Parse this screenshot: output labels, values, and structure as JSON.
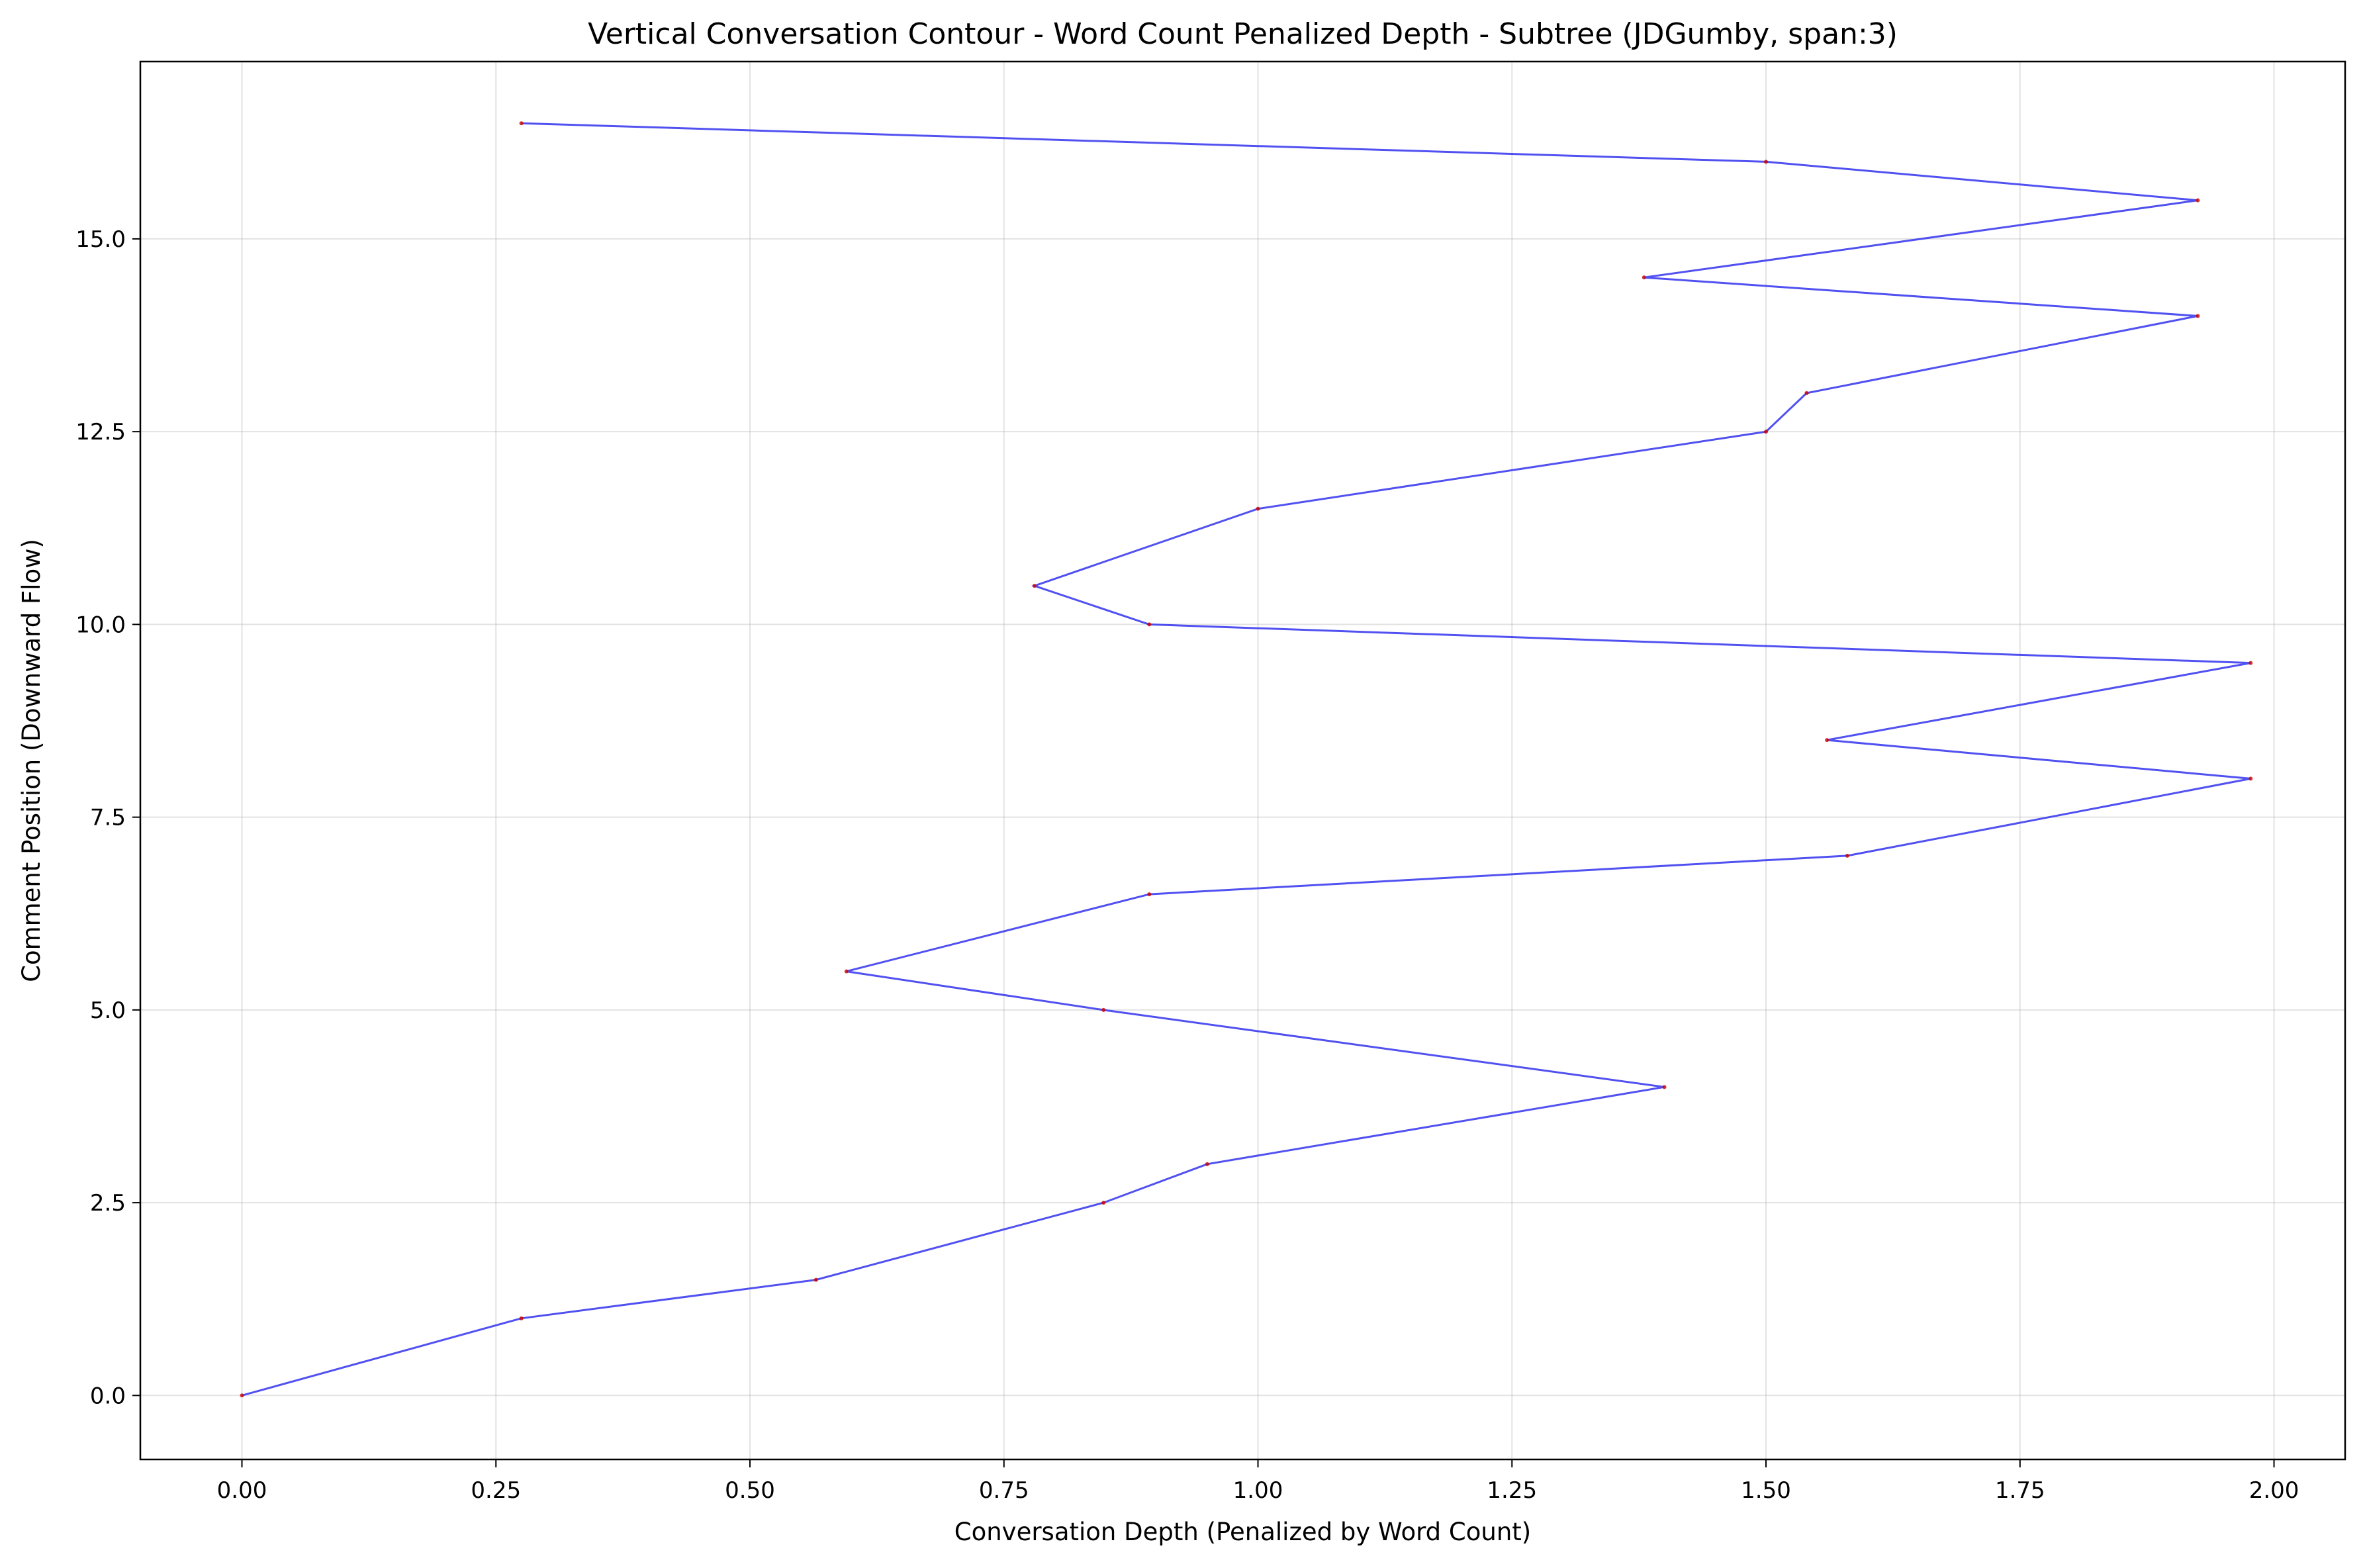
{
  "chart_data": {
    "type": "line",
    "title": "Vertical Conversation Contour - Word Count Penalized Depth - Subtree (JDGumby, span:3)",
    "xlabel": "Conversation Depth (Penalized by Word Count)",
    "ylabel": "Comment Position (Downward Flow)",
    "xlim": [
      -0.1,
      2.07
    ],
    "ylim": [
      -0.83,
      17.3
    ],
    "xticks": [
      "0.00",
      "0.25",
      "0.50",
      "0.75",
      "1.00",
      "1.25",
      "1.50",
      "1.75",
      "2.00"
    ],
    "yticks": [
      "0.0",
      "2.5",
      "5.0",
      "7.5",
      "10.0",
      "12.5",
      "15.0"
    ],
    "grid": true,
    "line_color": "#3333ee",
    "marker_color": "#cc0000",
    "series": [
      {
        "x": [
          0.0,
          0.275,
          0.565,
          0.848,
          0.95,
          1.4,
          0.848,
          0.595,
          0.893,
          1.58,
          1.977,
          1.56,
          1.977,
          0.893,
          0.78,
          1.0,
          1.5,
          1.54,
          1.925,
          1.38,
          1.925,
          1.5,
          0.275
        ],
        "y": [
          0.0,
          1.0,
          1.5,
          2.5,
          3.0,
          4.0,
          5.0,
          5.5,
          6.5,
          7.0,
          8.0,
          8.5,
          9.5,
          10.0,
          10.5,
          11.5,
          12.5,
          13.0,
          14.0,
          14.5,
          15.5,
          16.0,
          16.5
        ]
      }
    ]
  }
}
